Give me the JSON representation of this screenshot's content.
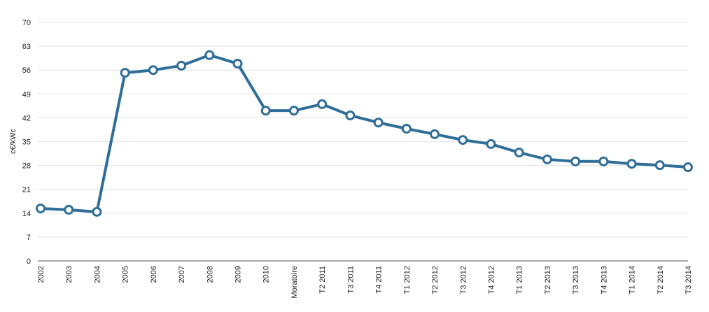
{
  "chart_data": {
    "type": "line",
    "y_label": "c€/kWc",
    "categories": [
      "2002",
      "2003",
      "2004",
      "2005",
      "2006",
      "2007",
      "2008",
      "2009",
      "2010",
      "Moratoire",
      "T2 2011",
      "T3 2011",
      "T4 2011",
      "T1 2012",
      "T2 2012",
      "T3 2012",
      "T4 2012",
      "T1 2013",
      "T2 2013",
      "T3 2013",
      "T4 2013",
      "T1 2014",
      "T2 2014",
      "T3 2014"
    ],
    "series": [
      {
        "name": "c€/kWc",
        "color": "#2f6e99",
        "values": [
          15.4,
          15.0,
          14.4,
          55.2,
          56.0,
          57.3,
          60.4,
          57.9,
          44.1,
          44.1,
          46.0,
          42.7,
          40.6,
          38.8,
          37.2,
          35.5,
          34.3,
          31.8,
          29.8,
          29.2,
          29.2,
          28.5,
          28.1,
          27.5
        ]
      }
    ],
    "ylim": [
      0,
      70
    ],
    "yticks": [
      0,
      7,
      14,
      21,
      28,
      35,
      42,
      49,
      56,
      63,
      70
    ],
    "grid": true
  }
}
